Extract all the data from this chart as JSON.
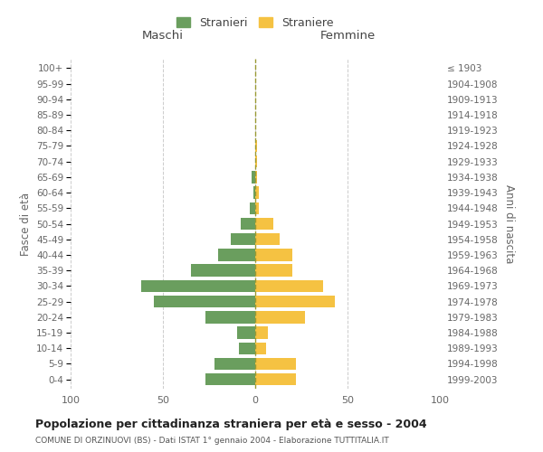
{
  "age_groups": [
    "0-4",
    "5-9",
    "10-14",
    "15-19",
    "20-24",
    "25-29",
    "30-34",
    "35-39",
    "40-44",
    "45-49",
    "50-54",
    "55-59",
    "60-64",
    "65-69",
    "70-74",
    "75-79",
    "80-84",
    "85-89",
    "90-94",
    "95-99",
    "100+"
  ],
  "birth_years": [
    "1999-2003",
    "1994-1998",
    "1989-1993",
    "1984-1988",
    "1979-1983",
    "1974-1978",
    "1969-1973",
    "1964-1968",
    "1959-1963",
    "1954-1958",
    "1949-1953",
    "1944-1948",
    "1939-1943",
    "1934-1938",
    "1929-1933",
    "1924-1928",
    "1919-1923",
    "1914-1918",
    "1909-1913",
    "1904-1908",
    "≤ 1903"
  ],
  "males": [
    27,
    22,
    9,
    10,
    27,
    55,
    62,
    35,
    20,
    13,
    8,
    3,
    1,
    2,
    0,
    0,
    0,
    0,
    0,
    0,
    0
  ],
  "females": [
    22,
    22,
    6,
    7,
    27,
    43,
    37,
    20,
    20,
    13,
    10,
    2,
    2,
    1,
    1,
    1,
    0,
    0,
    0,
    0,
    0
  ],
  "male_color": "#6a9e5e",
  "female_color": "#f5c242",
  "background_color": "#ffffff",
  "grid_color": "#cccccc",
  "xlim": 100,
  "title": "Popolazione per cittadinanza straniera per età e sesso - 2004",
  "subtitle": "COMUNE DI ORZINUOVI (BS) - Dati ISTAT 1° gennaio 2004 - Elaborazione TUTTITALIA.IT",
  "ylabel_left": "Fasce di età",
  "ylabel_right": "Anni di nascita",
  "xlabel_maschi": "Maschi",
  "xlabel_femmine": "Femmine",
  "legend_maschi": "Stranieri",
  "legend_femmine": "Straniere",
  "label_color": "#666666",
  "center_line_color": "#999933"
}
